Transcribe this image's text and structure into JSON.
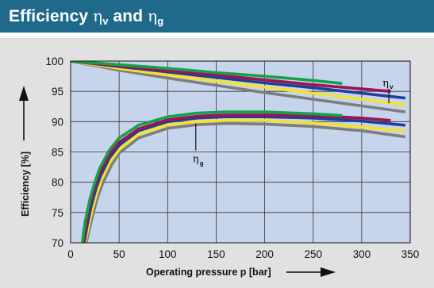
{
  "header": {
    "title_prefix": "Efficiency",
    "eta_symbol": "η",
    "sub_v": "v",
    "connector": "and",
    "sub_g": "g"
  },
  "colors": {
    "header_bg": "#1f6a8a",
    "panel_bg": "#e1e1e1",
    "plot_bg": "#c6d4ec",
    "series": [
      "#13a24a",
      "#9b1553",
      "#1e3f95",
      "#f4e22c",
      "#7d7d7d"
    ]
  },
  "chart_data": {
    "type": "line",
    "xlabel": "Operating pressure p [bar]",
    "ylabel": "Efficiency [%]",
    "xlim": [
      0,
      350
    ],
    "ylim": [
      70,
      100
    ],
    "xticks": [
      "0",
      "50",
      "100",
      "150",
      "200",
      "250",
      "300",
      "350"
    ],
    "yticks": [
      "70",
      "75",
      "80",
      "85",
      "90",
      "95",
      "100"
    ],
    "grid": true,
    "annotations": [
      {
        "symbol": "η",
        "sub": "v",
        "target": "volumetric curves",
        "x": 328,
        "y": 95.4
      },
      {
        "symbol": "η",
        "sub": "g",
        "target": "overall curves",
        "x": 129,
        "y": 89.7
      }
    ],
    "volumetric_series": [
      {
        "color_index": 0,
        "x": [
          0,
          50,
          100,
          150,
          200,
          250,
          280
        ],
        "y": [
          100,
          99.4,
          98.8,
          98.1,
          97.5,
          96.8,
          96.3
        ]
      },
      {
        "color_index": 1,
        "x": [
          0,
          50,
          100,
          150,
          200,
          250,
          330
        ],
        "y": [
          100,
          99.2,
          98.4,
          97.7,
          96.9,
          96.1,
          95.0
        ]
      },
      {
        "color_index": 2,
        "x": [
          0,
          50,
          100,
          150,
          200,
          250,
          300,
          345
        ],
        "y": [
          100,
          99.1,
          98.2,
          97.3,
          96.4,
          95.6,
          94.7,
          93.9
        ]
      },
      {
        "color_index": 3,
        "x": [
          0,
          50,
          100,
          150,
          200,
          250,
          300,
          345
        ],
        "y": [
          100,
          98.8,
          97.7,
          96.7,
          95.7,
          94.7,
          93.7,
          92.8
        ]
      },
      {
        "color_index": 4,
        "x": [
          0,
          50,
          100,
          150,
          200,
          250,
          300,
          345
        ],
        "y": [
          100,
          98.5,
          97.2,
          96.0,
          94.8,
          93.7,
          92.6,
          91.6
        ]
      }
    ],
    "overall_series": [
      {
        "color_index": 0,
        "x": [
          12,
          15,
          20,
          25,
          30,
          40,
          50,
          70,
          100,
          130,
          160,
          200,
          250,
          280
        ],
        "y": [
          70,
          73.5,
          77.3,
          80.0,
          82.3,
          85.3,
          87.3,
          89.4,
          90.8,
          91.4,
          91.6,
          91.6,
          91.3,
          91.0
        ]
      },
      {
        "color_index": 1,
        "x": [
          13,
          16,
          20,
          25,
          30,
          40,
          50,
          70,
          100,
          130,
          160,
          200,
          250,
          300,
          330
        ],
        "y": [
          70,
          73.1,
          76.3,
          79.3,
          81.5,
          84.6,
          86.6,
          88.8,
          90.3,
          90.9,
          91.1,
          91.1,
          91.0,
          90.6,
          90.2
        ]
      },
      {
        "color_index": 2,
        "x": [
          14,
          17,
          21,
          26,
          31,
          40,
          50,
          70,
          100,
          130,
          160,
          200,
          250,
          300,
          345
        ],
        "y": [
          70,
          72.8,
          75.9,
          78.9,
          81.1,
          84.0,
          86.1,
          88.5,
          90.0,
          90.6,
          90.8,
          90.8,
          90.6,
          90.1,
          89.4
        ]
      },
      {
        "color_index": 3,
        "x": [
          15,
          18,
          22,
          27,
          32,
          41,
          50,
          70,
          100,
          130,
          160,
          200,
          250,
          300,
          345
        ],
        "y": [
          70,
          72.4,
          75.3,
          78.2,
          80.5,
          83.4,
          85.4,
          87.9,
          89.5,
          90.0,
          90.2,
          90.2,
          89.8,
          89.1,
          88.4
        ]
      },
      {
        "color_index": 4,
        "x": [
          16,
          19,
          23,
          28,
          33,
          42,
          50,
          70,
          100,
          130,
          160,
          200,
          250,
          300,
          345
        ],
        "y": [
          70,
          72.0,
          74.7,
          77.6,
          79.8,
          82.8,
          84.8,
          87.3,
          88.9,
          89.5,
          89.7,
          89.6,
          89.2,
          88.5,
          87.5
        ]
      }
    ]
  }
}
